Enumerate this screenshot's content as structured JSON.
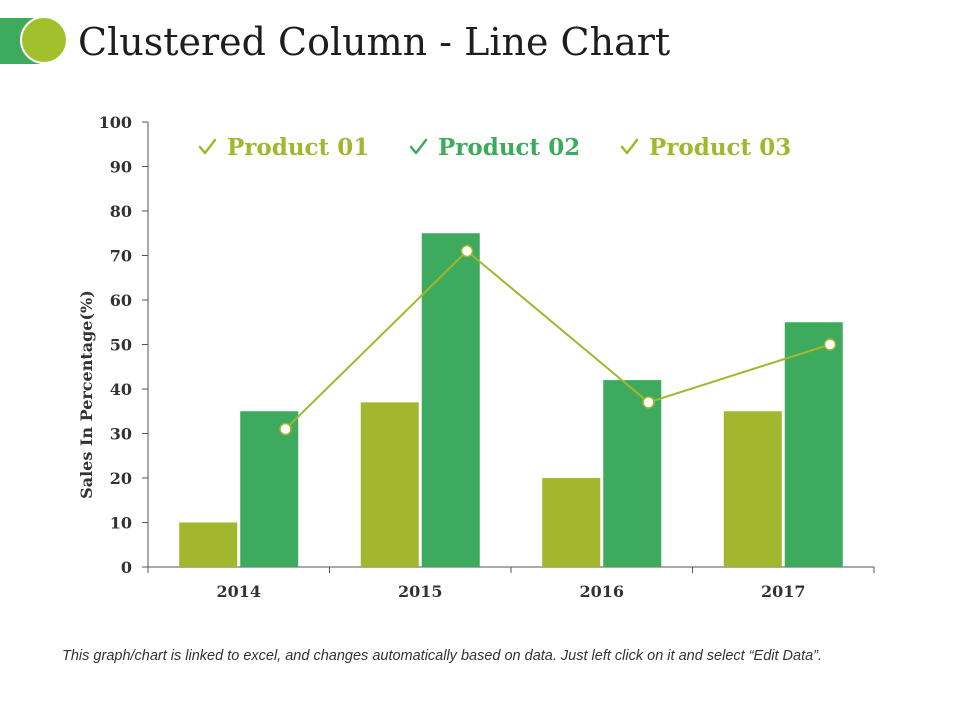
{
  "title": "Clustered Column - Line Chart",
  "footnote": "This graph/chart is linked to excel, and changes automatically based on data. Just left click on it and select “Edit Data”.",
  "colors": {
    "accent_dark": "#3daa5e",
    "accent_light": "#a2b72e",
    "circle": "#a2c02c",
    "axis": "#555555"
  },
  "legend_icon": "checkmark-icon",
  "chart_data": {
    "type": "bar",
    "categories": [
      "2014",
      "2015",
      "2016",
      "2017"
    ],
    "series": [
      {
        "name": "Product 01",
        "kind": "bar",
        "color": "#a2b72e",
        "values": [
          10,
          37,
          20,
          35
        ]
      },
      {
        "name": "Product 02",
        "kind": "bar",
        "color": "#3daa5e",
        "values": [
          35,
          75,
          42,
          55
        ]
      },
      {
        "name": "Product 03",
        "kind": "line",
        "color": "#a2b72e",
        "values": [
          31,
          71,
          37,
          50
        ]
      }
    ],
    "ylabel": "Sales In Percentage(%)",
    "xlabel": "",
    "ylim": [
      0,
      100
    ],
    "yticks": [
      0,
      10,
      20,
      30,
      40,
      50,
      60,
      70,
      80,
      90,
      100
    ],
    "legend_position": "top",
    "grid": false
  }
}
